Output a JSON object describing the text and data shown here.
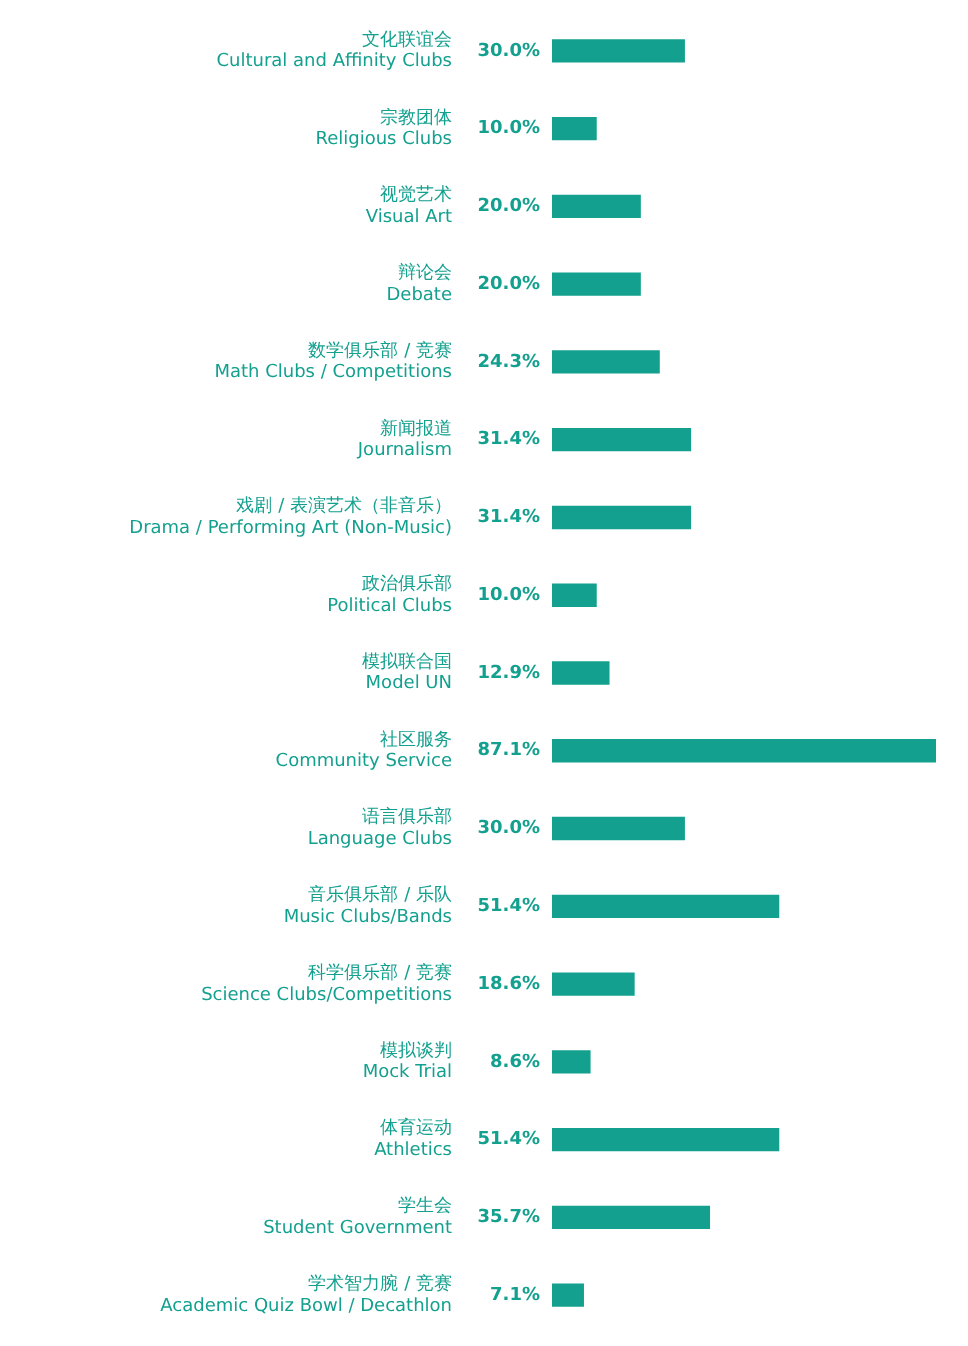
{
  "chart_data": {
    "type": "bar",
    "orientation": "horizontal",
    "color": "#13a08f",
    "categories": [
      "文化联谊会\nCultural and Affinity Clubs",
      "宗教团体\nReligious Clubs",
      "视觉艺术\nVisual Art",
      "辩论会\nDebate",
      "数学俱乐部 / 竞赛\nMath Clubs / Competitions",
      "新闻报道\nJournalism",
      "戏剧 / 表演艺术（非音乐）\nDrama / Performing Art (Non-Music)",
      "政治俱乐部\nPolitical Clubs",
      "模拟联合国\nModel UN",
      "社区服务\nCommunity Service",
      "语言俱乐部\nLanguage Clubs",
      "音乐俱乐部 / 乐队\nMusic Clubs/Bands",
      "科学俱乐部 / 竞赛\nScience Clubs/Competitions",
      "模拟谈判\nMock Trial",
      "体育运动\nAthletics",
      "学生会\nStudent Government",
      "学术智力腕 / 竞赛\nAcademic Quiz Bowl / Decathlon"
    ],
    "values": [
      30.0,
      10.0,
      20.0,
      20.0,
      24.3,
      31.4,
      31.4,
      10.0,
      12.9,
      87.1,
      30.0,
      51.4,
      18.6,
      8.6,
      51.4,
      35.7,
      7.1
    ],
    "value_labels": [
      "30.0%",
      "10.0%",
      "20.0%",
      "20.0%",
      "24.3%",
      "31.4%",
      "31.4%",
      "10.0%",
      "12.9%",
      "87.1%",
      "30.0%",
      "51.4%",
      "18.6%",
      "8.6%",
      "51.4%",
      "35.7%",
      "7.1%"
    ],
    "legend": false
  }
}
